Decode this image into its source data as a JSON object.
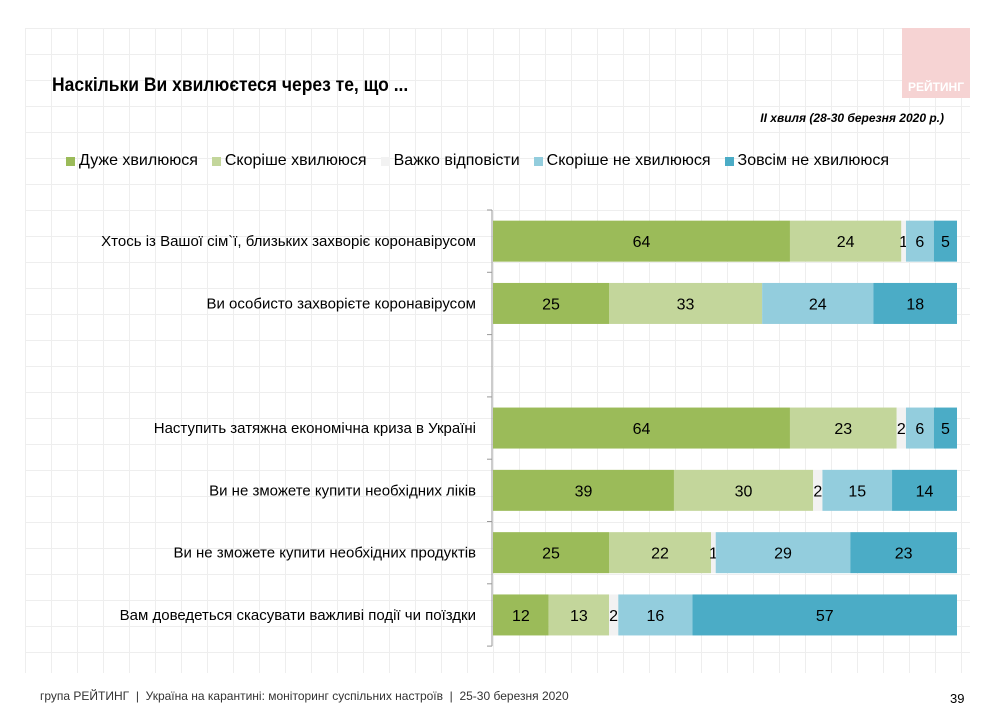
{
  "header": {
    "title": "Наскільки Ви хвилюєтеся через те, що ...",
    "subtitle": "ІІ хвиля (28-30 березня 2020 р.)",
    "logo_text": "РЕЙТИНГ"
  },
  "footer": {
    "text": "група РЕЙТИНГ  |  Україна на карантині: моніторинг суспільних настроїв  |  25-30 березня 2020",
    "page_number": "39"
  },
  "chart_data": {
    "type": "bar",
    "orientation": "horizontal",
    "stacked": true,
    "xlim": [
      0,
      100
    ],
    "legend_placement": "top",
    "categories": [
      "Хтось із Вашої сім`ї, близьких захворіє коронавірусом",
      "Ви особисто захворієте коронавірусом",
      "",
      "Наступить затяжна економічна криза в Україні",
      "Ви не зможете купити необхідних ліків",
      "Ви не зможете купити необхідних продуктів",
      "Вам доведеться скасувати важливі події чи поїздки"
    ],
    "series": [
      {
        "name": "Дуже хвилююся",
        "color": "#9bbb59",
        "values": [
          64,
          25,
          null,
          64,
          39,
          25,
          12
        ]
      },
      {
        "name": "Скоріше хвилююся",
        "color": "#c3d69b",
        "values": [
          24,
          33,
          null,
          23,
          30,
          22,
          13
        ]
      },
      {
        "name": "Важко відповісти",
        "color": "#f2f2f2",
        "values": [
          1,
          0,
          null,
          2,
          2,
          1,
          2
        ]
      },
      {
        "name": "Скоріше не хвилююся",
        "color": "#93cddd",
        "values": [
          6,
          24,
          null,
          6,
          15,
          29,
          16
        ]
      },
      {
        "name": "Зовсім не хвилююся",
        "color": "#4bacc6",
        "values": [
          5,
          18,
          null,
          5,
          14,
          23,
          57
        ]
      }
    ]
  }
}
